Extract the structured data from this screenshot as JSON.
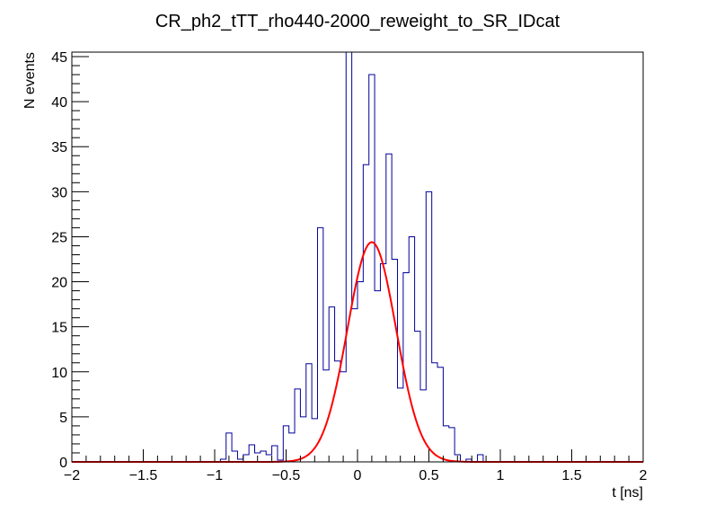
{
  "chart_data": {
    "type": "histogram",
    "title": "CR_ph2_tTT_rho440-2000_reweight_to_SR_IDcat",
    "xlabel": "t [ns]",
    "ylabel": "N events",
    "xlim": [
      -2,
      2
    ],
    "ylim": [
      0,
      45.5
    ],
    "x_ticks": [
      -2,
      -1.5,
      -1,
      -0.5,
      0,
      0.5,
      1,
      1.5,
      2
    ],
    "x_tick_labels": [
      "−2",
      "−1.5",
      "−1",
      "−0.5",
      "0",
      "0.5",
      "1",
      "1.5",
      "2"
    ],
    "y_ticks": [
      0,
      5,
      10,
      15,
      20,
      25,
      30,
      35,
      40,
      45
    ],
    "y_tick_labels": [
      "0",
      "5",
      "10",
      "15",
      "20",
      "25",
      "30",
      "35",
      "40",
      "45"
    ],
    "bin_width": 0.04,
    "bins": [
      {
        "x_low": -0.96,
        "value": 0.3
      },
      {
        "x_low": -0.92,
        "value": 3.2
      },
      {
        "x_low": -0.88,
        "value": 1.2
      },
      {
        "x_low": -0.84,
        "value": 0.3
      },
      {
        "x_low": -0.8,
        "value": 0.8
      },
      {
        "x_low": -0.76,
        "value": 1.9
      },
      {
        "x_low": -0.72,
        "value": 1.0
      },
      {
        "x_low": -0.68,
        "value": 1.2
      },
      {
        "x_low": -0.64,
        "value": 0.8
      },
      {
        "x_low": -0.6,
        "value": 1.8
      },
      {
        "x_low": -0.56,
        "value": 0.2
      },
      {
        "x_low": -0.52,
        "value": 4.0
      },
      {
        "x_low": -0.48,
        "value": 3.2
      },
      {
        "x_low": -0.44,
        "value": 8.1
      },
      {
        "x_low": -0.4,
        "value": 5.0
      },
      {
        "x_low": -0.36,
        "value": 10.9
      },
      {
        "x_low": -0.32,
        "value": 4.8
      },
      {
        "x_low": -0.28,
        "value": 26.0
      },
      {
        "x_low": -0.24,
        "value": 10.2
      },
      {
        "x_low": -0.2,
        "value": 17.2
      },
      {
        "x_low": -0.16,
        "value": 11.2
      },
      {
        "x_low": -0.12,
        "value": 10.0
      },
      {
        "x_low": -0.08,
        "value": 45.5
      },
      {
        "x_low": -0.04,
        "value": 17.0
      },
      {
        "x_low": 0.0,
        "value": 20.0
      },
      {
        "x_low": 0.04,
        "value": 33.0
      },
      {
        "x_low": 0.08,
        "value": 43.0
      },
      {
        "x_low": 0.12,
        "value": 19.0
      },
      {
        "x_low": 0.16,
        "value": 22.0
      },
      {
        "x_low": 0.2,
        "value": 34.2
      },
      {
        "x_low": 0.24,
        "value": 22.5
      },
      {
        "x_low": 0.28,
        "value": 8.2
      },
      {
        "x_low": 0.32,
        "value": 21.0
      },
      {
        "x_low": 0.36,
        "value": 25.0
      },
      {
        "x_low": 0.4,
        "value": 14.5
      },
      {
        "x_low": 0.44,
        "value": 8.0
      },
      {
        "x_low": 0.48,
        "value": 30.0
      },
      {
        "x_low": 0.52,
        "value": 11.0
      },
      {
        "x_low": 0.56,
        "value": 10.5
      },
      {
        "x_low": 0.6,
        "value": 4.0
      },
      {
        "x_low": 0.64,
        "value": 3.8
      },
      {
        "x_low": 0.68,
        "value": 0.8
      },
      {
        "x_low": 0.72,
        "value": 0.0
      },
      {
        "x_low": 0.76,
        "value": 0.3
      },
      {
        "x_low": 0.8,
        "value": 0.0
      },
      {
        "x_low": 0.84,
        "value": 0.8
      },
      {
        "x_low": 0.88,
        "value": 0.0
      }
    ],
    "fit": {
      "function": "gaussian",
      "amplitude": 24.4,
      "mean": 0.1,
      "sigma": 0.17
    },
    "colors": {
      "histogram": "#000099",
      "fit": "#ff0000",
      "axis": "#000000"
    }
  }
}
